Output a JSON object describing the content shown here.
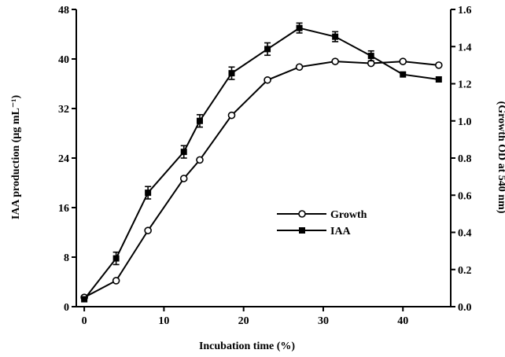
{
  "chart_data": {
    "type": "line",
    "xlabel": "Incubation time (%)",
    "ylabel_left": "IAA production (µg mL⁻¹)",
    "ylabel_right": "(Growth OD at 540 nm)",
    "xlim": [
      -1,
      46
    ],
    "x_ticks": [
      0,
      10,
      20,
      30,
      40
    ],
    "ylim_left": [
      0,
      48
    ],
    "y_ticks_left": [
      0,
      8,
      16,
      24,
      32,
      40,
      48
    ],
    "ylim_right": [
      0,
      1.6
    ],
    "y_ticks_right": [
      "0.0",
      "0.2",
      "0.4",
      "0.6",
      "0.8",
      "1.0",
      "1.2",
      "1.4",
      "1.6"
    ],
    "legend_position": "center-right",
    "series": [
      {
        "name": "Growth",
        "axis": "right",
        "marker": "open-circle",
        "x": [
          0,
          4,
          8,
          12.5,
          14.5,
          18.5,
          23,
          27,
          31.5,
          36,
          40,
          44.5
        ],
        "y": [
          0.05,
          0.14,
          0.41,
          0.69,
          0.79,
          1.03,
          1.22,
          1.29,
          1.32,
          1.31,
          1.32,
          1.3
        ]
      },
      {
        "name": "IAA",
        "axis": "left",
        "marker": "filled-square",
        "x": [
          0,
          4,
          8,
          12.5,
          14.5,
          18.5,
          23,
          27,
          31.5,
          36,
          40,
          44.5
        ],
        "y": [
          1.2,
          7.8,
          18.4,
          25,
          30,
          37.7,
          41.6,
          45,
          43.6,
          40.5,
          37.5,
          36.7
        ],
        "error": [
          0,
          1,
          1,
          1,
          1,
          1,
          1,
          0.8,
          0.8,
          0.8,
          0,
          0
        ]
      }
    ]
  }
}
